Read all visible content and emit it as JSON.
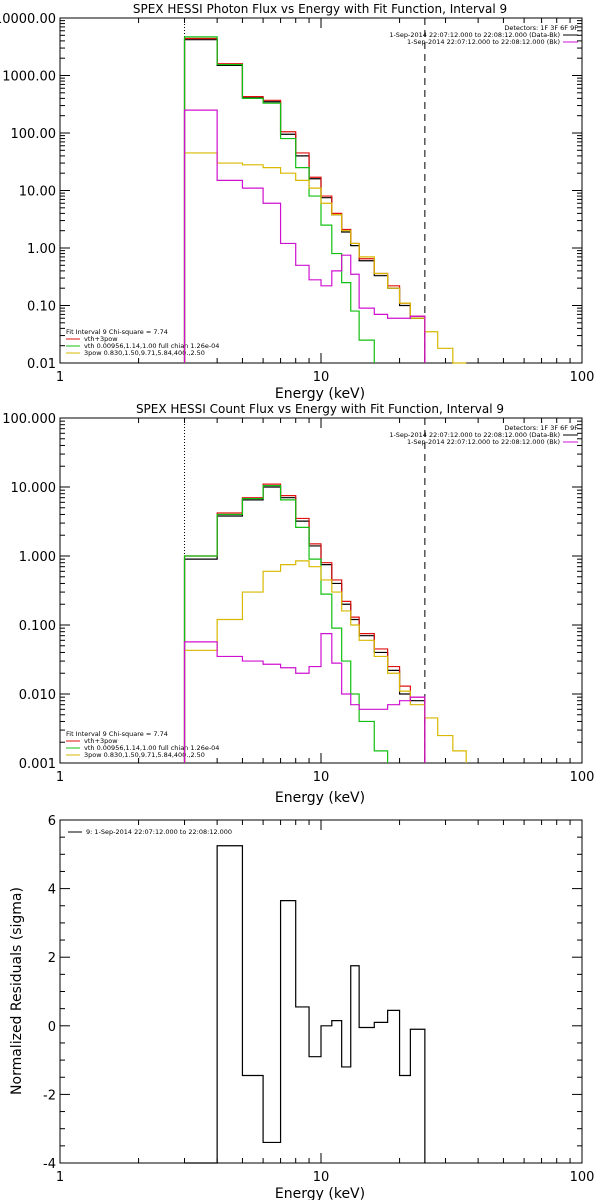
{
  "chart_data": [
    {
      "type": "line",
      "title": "SPEX HESSI Photon Flux vs Energy with Fit Function, Interval 9",
      "xlabel": "Energy (keV)",
      "ylabel": "",
      "xscale": "log",
      "yscale": "log",
      "xlim": [
        1,
        100
      ],
      "ylim": [
        0.01,
        10000
      ],
      "x_tick_labels": [
        "1",
        "10",
        "100"
      ],
      "y_tick_labels": [
        "0.01",
        "0.10",
        "1.00",
        "10.00",
        "100.00",
        "1000.00",
        "10000.00"
      ],
      "y_ticks": [
        0.01,
        0.1,
        1,
        10,
        100,
        1000,
        10000
      ],
      "vlines": [
        {
          "x": 3,
          "style": "dotted"
        },
        {
          "x": 25,
          "style": "dashed"
        }
      ],
      "legend_right": [
        "Detectors: 1F 3F 6F 9F",
        "1-Sep-2014 22:07:12.000 to 22:08:12.000 (Data-Bk)",
        "1-Sep-2014 22:07:12.000 to 22:08:12.000 (Bk)"
      ],
      "legend_left": [
        "Fit Interval 9   Chi-square = 7.74",
        "vth+3pow",
        "vth 0.00956,1.14,1.00  full chian 1.26e-04",
        "3pow 0.830,1.50,9.71,5.84,400.,2.50"
      ],
      "edges": [
        3,
        4,
        5,
        6,
        7,
        8,
        9,
        10,
        11,
        12,
        13,
        14,
        16,
        18,
        20,
        22,
        25,
        28,
        32,
        36
      ],
      "series": [
        {
          "name": "Data-Bk",
          "color": "#000000",
          "values": [
            4200,
            1500,
            420,
            350,
            95,
            40,
            16,
            7.5,
            3.8,
            1.9,
            1.1,
            0.6,
            0.33,
            0.2,
            0.1,
            0.06
          ]
        },
        {
          "name": "vth+3pow",
          "color": "#e01010",
          "values": [
            4400,
            1600,
            430,
            370,
            105,
            45,
            17,
            8,
            4,
            2.1,
            1.2,
            0.65,
            0.36,
            0.22,
            0.11,
            0.065
          ]
        },
        {
          "name": "vth",
          "color": "#10c010",
          "values": [
            4700,
            1550,
            400,
            330,
            80,
            25,
            8,
            2.5,
            0.8,
            0.25,
            0.08,
            0.025
          ]
        },
        {
          "name": "3pow",
          "color": "#d8b800",
          "values": [
            45,
            30,
            28,
            25,
            20,
            15,
            11,
            6,
            3.8,
            2,
            1.2,
            0.7,
            0.36,
            0.2,
            0.11,
            0.06,
            0.035,
            0.018,
            0.01
          ]
        },
        {
          "name": "Bk",
          "color": "#d010d0",
          "values": [
            250,
            15,
            11,
            6,
            1.2,
            0.5,
            0.28,
            0.22,
            0.4,
            0.75,
            0.35,
            0.09,
            0.07,
            0.06,
            0.06,
            0.065
          ]
        }
      ]
    },
    {
      "type": "line",
      "title": "SPEX HESSI Count Flux vs Energy with Fit Function, Interval 9",
      "xlabel": "Energy (keV)",
      "ylabel": "",
      "xscale": "log",
      "yscale": "log",
      "xlim": [
        1,
        100
      ],
      "ylim": [
        0.001,
        100
      ],
      "x_tick_labels": [
        "1",
        "10",
        "100"
      ],
      "y_tick_labels": [
        "0.001",
        "0.010",
        "0.100",
        "1.000",
        "10.000",
        "100.000"
      ],
      "y_ticks": [
        0.001,
        0.01,
        0.1,
        1,
        10,
        100
      ],
      "vlines": [
        {
          "x": 3,
          "style": "dotted"
        },
        {
          "x": 25,
          "style": "dashed"
        }
      ],
      "legend_right": [
        "Detectors: 1F 3F 6F 9F",
        "1-Sep-2014 22:07:12.000 to 22:08:12.000 (Data-Bk)",
        "1-Sep-2014 22:07:12.000 to 22:08:12.000 (Bk)"
      ],
      "legend_left": [
        "Fit Interval 9   Chi-square = 7.74",
        "vth+3pow",
        "vth 0.00956,1.14,1.00  full chian 1.26e-04",
        "3pow 0.830,1.50,9.71,5.84,400.,2.50"
      ],
      "edges": [
        3,
        4,
        5,
        6,
        7,
        8,
        9,
        10,
        11,
        12,
        13,
        14,
        16,
        18,
        20,
        22,
        25,
        28,
        32,
        36
      ],
      "series": [
        {
          "name": "Data-Bk",
          "color": "#000000",
          "values": [
            0.9,
            3.8,
            6.5,
            10,
            7,
            3.2,
            1.4,
            0.75,
            0.4,
            0.2,
            0.12,
            0.07,
            0.04,
            0.022,
            0.01,
            0.008
          ]
        },
        {
          "name": "vth+3pow",
          "color": "#e01010",
          "values": [
            1,
            4.2,
            7,
            11,
            7.5,
            3.5,
            1.5,
            0.8,
            0.45,
            0.22,
            0.13,
            0.075,
            0.045,
            0.025,
            0.013,
            0.009
          ]
        },
        {
          "name": "vth",
          "color": "#10c010",
          "values": [
            1,
            4,
            6.8,
            10.5,
            6.5,
            2.6,
            0.9,
            0.28,
            0.09,
            0.03,
            0.01,
            0.004,
            0.0015
          ]
        },
        {
          "name": "3pow",
          "color": "#d8b800",
          "values": [
            0.043,
            0.12,
            0.3,
            0.6,
            0.75,
            0.85,
            0.7,
            0.45,
            0.3,
            0.16,
            0.1,
            0.06,
            0.035,
            0.02,
            0.011,
            0.007,
            0.0045,
            0.0025,
            0.0015
          ]
        },
        {
          "name": "Bk",
          "color": "#d010d0",
          "values": [
            0.057,
            0.035,
            0.03,
            0.027,
            0.024,
            0.02,
            0.025,
            0.075,
            0.028,
            0.01,
            0.007,
            0.006,
            0.006,
            0.007,
            0.008,
            0.009
          ]
        }
      ]
    },
    {
      "type": "line",
      "title": "",
      "xlabel": "Energy (keV)",
      "ylabel": "Normalized Residuals (sigma)",
      "xscale": "log",
      "yscale": "linear",
      "xlim": [
        1,
        100
      ],
      "ylim": [
        -4,
        6
      ],
      "x_tick_labels": [
        "1",
        "10",
        "100"
      ],
      "y_tick_labels": [
        "-4",
        "-2",
        "0",
        "2",
        "4",
        "6"
      ],
      "y_ticks": [
        -4,
        -2,
        0,
        2,
        4,
        6
      ],
      "legend": [
        "9:  1-Sep-2014 22:07:12.000 to 22:08:12.000"
      ],
      "edges": [
        3,
        4,
        5,
        6,
        7,
        8,
        9,
        10,
        11,
        12,
        13,
        14,
        16,
        18,
        20,
        22,
        25
      ],
      "series": [
        {
          "name": "9:  1-Sep-2014 22:07:12.000 to 22:08:12.000",
          "color": "#000000",
          "values": [
            -4,
            5.25,
            -1.45,
            -3.4,
            3.65,
            0.55,
            -0.9,
            0.0,
            0.15,
            -1.2,
            1.75,
            -0.05,
            0.1,
            0.45,
            -1.45,
            -0.1
          ]
        }
      ]
    }
  ]
}
